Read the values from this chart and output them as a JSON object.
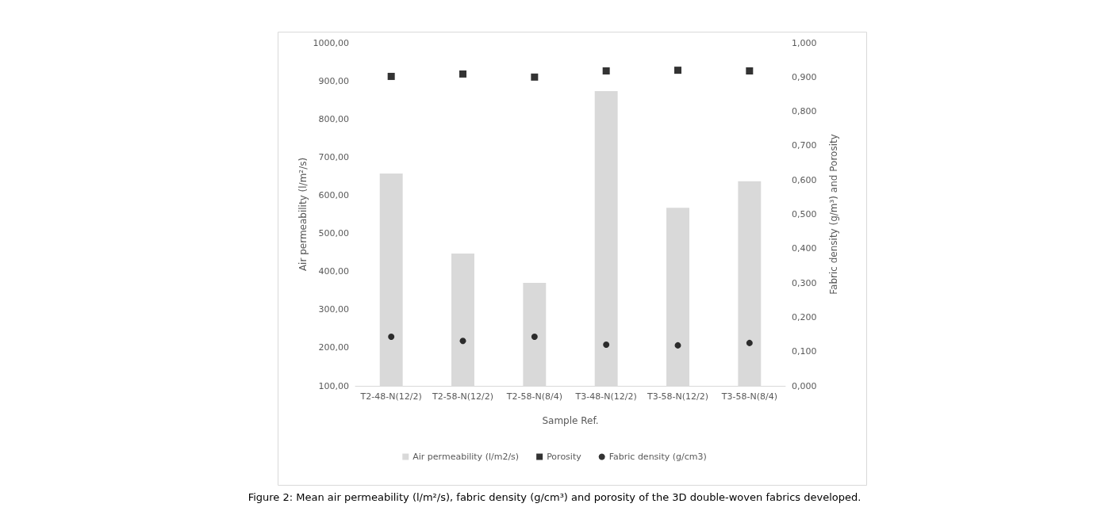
{
  "chart_data": {
    "type": "bar",
    "xlabel": "Sample Ref.",
    "ylabel": "Air permeability (l/m²/s)",
    "y2label": "Fabric density (g/m³) and Porosity",
    "categories": [
      "T2-48-N(12/2)",
      "T2-58-N(12/2)",
      "T2-58-N(8/4)",
      "T3-48-N(12/2)",
      "T3-58-N(12/2)",
      "T3-58-N(8/4)"
    ],
    "series": [
      {
        "name": "Air permeability (l/m2/s)",
        "color": "#d9d9d9",
        "values": [
          657,
          447,
          370,
          873,
          567,
          637
        ]
      },
      {
        "name": "Porosity",
        "type": "scatter",
        "marker": "square",
        "axis": "y2",
        "color": "#000000",
        "values": [
          0.902,
          0.909,
          0.9,
          0.918,
          0.92,
          0.918
        ]
      },
      {
        "name": "Fabric density (g/cm3)",
        "type": "scatter",
        "marker": "circle",
        "axis": "y2",
        "color": "#000000",
        "values": [
          0.143,
          0.131,
          0.143,
          0.12,
          0.118,
          0.125
        ]
      }
    ],
    "ylim": [
      100,
      1000
    ],
    "yticks": [
      {
        "value": 100,
        "label": "100,00"
      },
      {
        "value": 200,
        "label": "200,00"
      },
      {
        "value": 300,
        "label": "300,00"
      },
      {
        "value": 400,
        "label": "400,00"
      },
      {
        "value": 500,
        "label": "500,00"
      },
      {
        "value": 600,
        "label": "600,00"
      },
      {
        "value": 700,
        "label": "700,00"
      },
      {
        "value": 800,
        "label": "800,00"
      },
      {
        "value": 900,
        "label": "900,00"
      },
      {
        "value": 1000,
        "label": "1000,00"
      }
    ],
    "y2lim": [
      0,
      1
    ],
    "y2ticks": [
      {
        "value": 0,
        "label": "0,000"
      },
      {
        "value": 0.1,
        "label": "0,100"
      },
      {
        "value": 0.2,
        "label": "0,200"
      },
      {
        "value": 0.3,
        "label": "0,300"
      },
      {
        "value": 0.4,
        "label": "0,400"
      },
      {
        "value": 0.5,
        "label": "0,500"
      },
      {
        "value": 0.6,
        "label": "0,600"
      },
      {
        "value": 0.7,
        "label": "0,700"
      },
      {
        "value": 0.8,
        "label": "0,800"
      },
      {
        "value": 0.9,
        "label": "0,900"
      },
      {
        "value": 1,
        "label": "1,000"
      }
    ],
    "legend": "bottom",
    "grid": false,
    "annotations": [
      "Figure 2: Mean air permeability (l/m²/s), fabric density (g/cm³) and porosity of the 3D double-woven fabrics developed."
    ]
  }
}
